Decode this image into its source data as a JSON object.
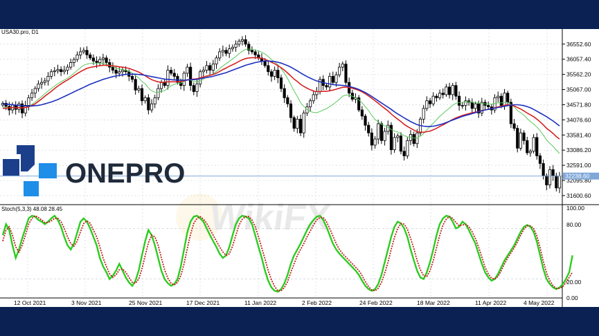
{
  "symbol_label": "USA30.pro, D1",
  "brand": {
    "name": "ONEPRO",
    "icon": "onepro-logo",
    "colors": {
      "dark": "#1f2a3a",
      "blue": "#1e8ee8",
      "navy": "#1c3f8c"
    }
  },
  "watermark": "WikiFX",
  "colors": {
    "frame_bg": "#0b2154",
    "bull": "#ffffff",
    "bear": "#000000",
    "ma_red": "#d62020",
    "ma_blue": "#1b2fbf",
    "ma_green": "#59c95a",
    "stoch_main": "#2bcc1e",
    "stoch_signal": "#c21a1a",
    "price_line": "#7fa7d8",
    "grid": "#c9cfd8"
  },
  "price_axis": {
    "labels": [
      "36552.60",
      "36057.40",
      "35562.20",
      "35067.00",
      "34571.80",
      "34076.60",
      "33581.40",
      "33086.20",
      "32591.00",
      "32095.80",
      "31600.60"
    ],
    "current": "32238.60",
    "ylim": [
      31350,
      37000
    ]
  },
  "stoch_panel": {
    "label": "Stoch(5,3,3) 48.08 28.45",
    "axis_labels": [
      "100.00",
      "80.00",
      "20.00",
      "0.00"
    ]
  },
  "time_axis": {
    "labels": [
      "12 Oct 2021",
      "3 Nov 2021",
      "25 Nov 2021",
      "17 Dec 2021",
      "11 Jan 2022",
      "2 Feb 2022",
      "24 Feb 2022",
      "18 Mar 2022",
      "11 Apr 2022",
      "4 May 2022"
    ]
  },
  "chart_data": {
    "type": "candlestick",
    "close": [
      34620,
      34520,
      34400,
      34560,
      34420,
      34600,
      34300,
      34550,
      34800,
      34950,
      35100,
      35250,
      35300,
      35350,
      35500,
      35650,
      35680,
      35720,
      35650,
      35700,
      35800,
      35950,
      36050,
      36200,
      36300,
      36350,
      36200,
      36100,
      36000,
      35950,
      36050,
      36100,
      35950,
      35800,
      35700,
      35600,
      35650,
      35700,
      35650,
      35500,
      35400,
      35050,
      35100,
      34700,
      34800,
      34400,
      34600,
      34800,
      35100,
      35300,
      35200,
      35700,
      35600,
      35500,
      35300,
      35200,
      35600,
      35800,
      35200,
      35000,
      35250,
      35650,
      35700,
      35850,
      35700,
      35900,
      36100,
      36300,
      36350,
      36250,
      36400,
      36450,
      36550,
      36650,
      36700,
      36550,
      36350,
      36300,
      36200,
      36100,
      36000,
      35850,
      35650,
      35500,
      35700,
      35450,
      35100,
      34800,
      34600,
      34150,
      33800,
      34100,
      33650,
      34300,
      34500,
      34700,
      34900,
      35000,
      35400,
      35200,
      35150,
      35500,
      35300,
      35550,
      35800,
      35900,
      35300,
      34950,
      34750,
      34800,
      34400,
      34200,
      33900,
      33650,
      33250,
      33450,
      33950,
      33400,
      33700,
      33900,
      33100,
      33500,
      33550,
      33050,
      32900,
      33400,
      33600,
      33300,
      33650,
      34100,
      34450,
      34700,
      34600,
      34850,
      34800,
      34950,
      34900,
      35150,
      34900,
      35200,
      34850,
      34550,
      34550,
      34700,
      34650,
      34450,
      34600,
      34300,
      34650,
      34550,
      34500,
      34400,
      34800,
      34850,
      34550,
      34950,
      34650,
      33950,
      33800,
      33150,
      33650,
      33400,
      33000,
      33050,
      33500,
      32900,
      32650,
      32250,
      31950,
      32450,
      32250,
      31850,
      32238.6
    ],
    "ma_red": [
      34450,
      34460,
      34470,
      34480,
      34470,
      34480,
      34470,
      34480,
      34500,
      34550,
      34600,
      34680,
      34760,
      34850,
      34930,
      35010,
      35100,
      35180,
      35250,
      35320,
      35380,
      35450,
      35520,
      35590,
      35650,
      35710,
      35760,
      35790,
      35810,
      35830,
      35850,
      35860,
      35860,
      35850,
      35840,
      35830,
      35810,
      35800,
      35780,
      35760,
      35720,
      35680,
      35640,
      35580,
      35520,
      35450,
      35390,
      35350,
      35320,
      35300,
      35310,
      35320,
      35320,
      35320,
      35320,
      35330,
      35350,
      35380,
      35400,
      35410,
      35420,
      35450,
      35480,
      35510,
      35530,
      35560,
      35600,
      35660,
      35720,
      35770,
      35830,
      35880,
      35930,
      35990,
      36040,
      36080,
      36100,
      36110,
      36110,
      36100,
      36090,
      36050,
      36010,
      35960,
      35910,
      35850,
      35780,
      35700,
      35610,
      35510,
      35410,
      35330,
      35240,
      35170,
      35110,
      35060,
      35020,
      35000,
      35000,
      35010,
      35010,
      35030,
      35050,
      35080,
      35110,
      35140,
      35150,
      35130,
      35110,
      35080,
      35040,
      34990,
      34930,
      34860,
      34780,
      34700,
      34620,
      34530,
      34450,
      34370,
      34270,
      34180,
      34100,
      34020,
      33930,
      33860,
      33800,
      33740,
      33690,
      33670,
      33670,
      33690,
      33710,
      33750,
      33800,
      33860,
      33910,
      33970,
      34030,
      34090,
      34140,
      34180,
      34220,
      34250,
      34280,
      34310,
      34330,
      34350,
      34380,
      34400,
      34420,
      34440,
      34470,
      34500,
      34520,
      34550,
      34570,
      34560,
      34530,
      34480,
      34430,
      34370,
      34300,
      34240,
      34180,
      34100,
      34010,
      33910,
      33800,
      33720,
      33630,
      33530,
      33450
    ],
    "ma_blue": [
      34600,
      34590,
      34580,
      34570,
      34560,
      34550,
      34540,
      34530,
      34530,
      34530,
      34540,
      34550,
      34570,
      34600,
      34630,
      34660,
      34700,
      34740,
      34790,
      34840,
      34890,
      34940,
      34990,
      35040,
      35090,
      35140,
      35190,
      35240,
      35280,
      35320,
      35360,
      35400,
      35430,
      35460,
      35490,
      35510,
      35530,
      35550,
      35560,
      35570,
      35570,
      35570,
      35560,
      35550,
      35530,
      35510,
      35490,
      35470,
      35450,
      35430,
      35410,
      35400,
      35390,
      35380,
      35380,
      35370,
      35370,
      35380,
      35390,
      35390,
      35400,
      35420,
      35440,
      35460,
      35480,
      35500,
      35530,
      35560,
      35590,
      35620,
      35660,
      35700,
      35740,
      35780,
      35820,
      35860,
      35890,
      35920,
      35950,
      35970,
      35990,
      36000,
      36000,
      35990,
      35980,
      35960,
      35930,
      35890,
      35850,
      35800,
      35740,
      35680,
      35610,
      35550,
      35490,
      35440,
      35390,
      35350,
      35320,
      35290,
      35270,
      35250,
      35230,
      35220,
      35210,
      35200,
      35190,
      35170,
      35140,
      35110,
      35070,
      35020,
      34970,
      34910,
      34840,
      34770,
      34700,
      34630,
      34560,
      34490,
      34420,
      34340,
      34270,
      34210,
      34140,
      34080,
      34020,
      33970,
      33920,
      33890,
      33870,
      33860,
      33860,
      33870,
      33890,
      33920,
      33950,
      33990,
      34030,
      34070,
      34110,
      34150,
      34190,
      34220,
      34250,
      34280,
      34310,
      34340,
      34370,
      34400,
      34420,
      34440,
      34460,
      34480,
      34500,
      34520,
      34540,
      34560,
      34570,
      34570,
      34560,
      34540,
      34510,
      34470,
      34420,
      34360,
      34300,
      34240,
      34180,
      34110,
      34040,
      33960,
      33880
    ],
    "ma_green": [
      34500,
      34480,
      34460,
      34470,
      34460,
      34480,
      34460,
      34480,
      34520,
      34580,
      34660,
      34750,
      34840,
      34930,
      35020,
      35100,
      35180,
      35260,
      35320,
      35380,
      35440,
      35520,
      35600,
      35690,
      35780,
      35860,
      35900,
      35920,
      35920,
      35910,
      35920,
      35920,
      35900,
      35860,
      35820,
      35770,
      35740,
      35720,
      35700,
      35660,
      35610,
      35520,
      35450,
      35330,
      35250,
      35120,
      35030,
      34980,
      34980,
      35010,
      35030,
      35120,
      35190,
      35240,
      35260,
      35280,
      35330,
      35400,
      35380,
      35330,
      35310,
      35350,
      35410,
      35480,
      35530,
      35580,
      35660,
      35750,
      35840,
      35910,
      35990,
      36070,
      36150,
      36240,
      36320,
      36380,
      36390,
      36380,
      36360,
      36330,
      36290,
      36230,
      36150,
      36050,
      35970,
      35880,
      35750,
      35600,
      35430,
      35230,
      35020,
      34840,
      34640,
      34520,
      34420,
      34350,
      34320,
      34310,
      34350,
      34400,
      34440,
      34510,
      34580,
      34660,
      34750,
      34850,
      34890,
      34880,
      34850,
      34810,
      34730,
      34630,
      34510,
      34380,
      34220,
      34090,
      34010,
      33930,
      33880,
      33840,
      33760,
      33710,
      33680,
      33630,
      33560,
      33520,
      33510,
      33480,
      33480,
      33540,
      33630,
      33750,
      33860,
      33970,
      34080,
      34190,
      34280,
      34380,
      34460,
      34560,
      34620,
      34640,
      34650,
      34660,
      34670,
      34650,
      34640,
      34620,
      34610,
      34600,
      34600,
      34590,
      34610,
      34630,
      34630,
      34650,
      34650,
      34580,
      34500,
      34380,
      34310,
      34230,
      34120,
      34020,
      33940,
      33840,
      33720,
      33580,
      33420,
      33310,
      33210,
      33090,
      32980
    ],
    "stoch_main": [
      72,
      85,
      78,
      60,
      45,
      55,
      68,
      80,
      92,
      95,
      94,
      90,
      88,
      85,
      88,
      92,
      95,
      90,
      82,
      70,
      60,
      55,
      62,
      75,
      88,
      92,
      88,
      80,
      70,
      60,
      45,
      35,
      28,
      20,
      24,
      30,
      38,
      30,
      22,
      16,
      12,
      18,
      30,
      48,
      65,
      78,
      72,
      60,
      45,
      30,
      20,
      15,
      12,
      14,
      20,
      35,
      55,
      75,
      88,
      94,
      95,
      92,
      88,
      80,
      72,
      65,
      58,
      50,
      45,
      48,
      58,
      72,
      85,
      92,
      95,
      94,
      92,
      85,
      72,
      58,
      45,
      30,
      18,
      10,
      6,
      5,
      8,
      15,
      25,
      38,
      48,
      55,
      62,
      70,
      78,
      85,
      90,
      94,
      95,
      90,
      82,
      72,
      62,
      55,
      50,
      46,
      42,
      38,
      34,
      30,
      25,
      18,
      12,
      8,
      6,
      8,
      14,
      25,
      40,
      55,
      70,
      82,
      88,
      86,
      80,
      70,
      55,
      42,
      30,
      22,
      20,
      28,
      40,
      55,
      72,
      85,
      92,
      95,
      94,
      88,
      80,
      82,
      88,
      85,
      78,
      70,
      62,
      50,
      38,
      28,
      22,
      18,
      20,
      26,
      34,
      42,
      48,
      54,
      60,
      68,
      76,
      82,
      84,
      82,
      76,
      64,
      48,
      32,
      20,
      14,
      10,
      8,
      10,
      14,
      20,
      28,
      48.08
    ],
    "stoch_signal": [
      65,
      78,
      82,
      72,
      58,
      52,
      60,
      72,
      85,
      92,
      95,
      93,
      90,
      87,
      87,
      89,
      92,
      92,
      88,
      80,
      70,
      62,
      59,
      65,
      76,
      86,
      89,
      86,
      78,
      70,
      58,
      45,
      35,
      26,
      22,
      25,
      31,
      32,
      28,
      22,
      16,
      15,
      20,
      32,
      48,
      63,
      72,
      70,
      60,
      45,
      31,
      21,
      15,
      13,
      16,
      24,
      38,
      56,
      73,
      86,
      92,
      94,
      91,
      86,
      79,
      72,
      65,
      58,
      52,
      48,
      50,
      59,
      72,
      84,
      91,
      94,
      94,
      90,
      82,
      70,
      57,
      44,
      30,
      19,
      11,
      6,
      6,
      10,
      17,
      28,
      38,
      48,
      55,
      62,
      70,
      77,
      84,
      90,
      93,
      93,
      88,
      80,
      71,
      62,
      55,
      50,
      46,
      42,
      38,
      34,
      30,
      24,
      17,
      11,
      7,
      6,
      9,
      16,
      27,
      40,
      55,
      69,
      80,
      86,
      85,
      79,
      68,
      56,
      42,
      31,
      24,
      23,
      30,
      42,
      57,
      72,
      84,
      91,
      94,
      92,
      87,
      83,
      84,
      85,
      82,
      76,
      68,
      58,
      46,
      34,
      26,
      21,
      20,
      23,
      30,
      38,
      45,
      51,
      57,
      64,
      72,
      79,
      83,
      83,
      80,
      71,
      57,
      41,
      27,
      18,
      12,
      9,
      9,
      11,
      16,
      22,
      28.45
    ]
  }
}
